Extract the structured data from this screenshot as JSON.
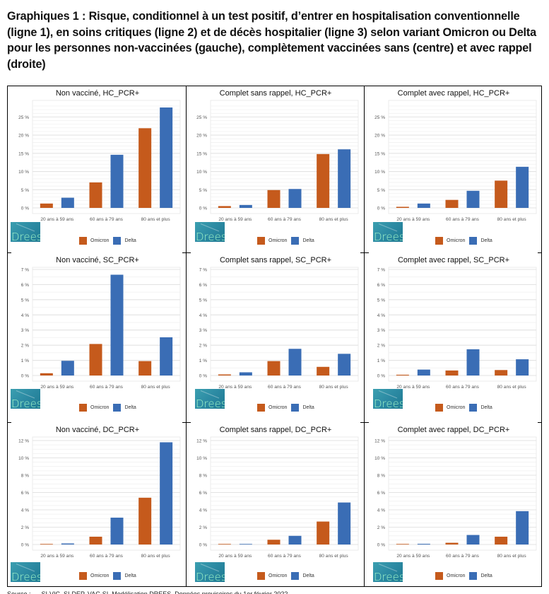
{
  "heading": "Graphiques 1 : Risque, conditionnel à un test positif, d’entrer en hospitalisation conventionnelle (ligne 1), en soins critiques (ligne 2) et de décès hospitalier (ligne 3) selon variant Omicron ou Delta pour les personnes non-vaccinées (gauche), complètement vaccinées sans (centre) et avec rappel (droite)",
  "logo_text": "Drees",
  "legend": {
    "omicron": "Omicron",
    "delta": "Delta"
  },
  "colors": {
    "omicron": "#c55a1c",
    "delta": "#3a6db5",
    "grid": "#e3e3e3",
    "axis_text": "#555555"
  },
  "footer": "Source : ..., SI-VIC, SI-DEP, VAC-SI, Modélisation DREES. Données provisoires du 1er février 2022 ...",
  "chart_data": [
    {
      "type": "bar",
      "title": "Non vacciné, HC_PCR+",
      "categories": [
        "20 ans à 59 ans",
        "60 ans à 79 ans",
        "80 ans et plus"
      ],
      "series": [
        {
          "name": "Omicron",
          "values": [
            1.2,
            7.0,
            21.9
          ]
        },
        {
          "name": "Delta",
          "values": [
            2.8,
            14.6,
            27.6
          ]
        }
      ],
      "yticks": [
        "0 %",
        "5 %",
        "10 %",
        "15 %",
        "20 %",
        "25 %"
      ],
      "ylim": [
        0,
        28
      ],
      "ytick_step": 5,
      "xlabel": "",
      "ylabel": "",
      "grid": true,
      "legend": "bottom"
    },
    {
      "type": "bar",
      "title": "Complet sans rappel, HC_PCR+",
      "categories": [
        "20 ans à 59 ans",
        "60 ans à 79 ans",
        "80 ans et plus"
      ],
      "series": [
        {
          "name": "Omicron",
          "values": [
            0.5,
            4.9,
            14.8
          ]
        },
        {
          "name": "Delta",
          "values": [
            0.8,
            5.2,
            16.1
          ]
        }
      ],
      "yticks": [
        "0 %",
        "5 %",
        "10 %",
        "15 %",
        "20 %",
        "25 %"
      ],
      "ylim": [
        0,
        28
      ],
      "ytick_step": 5,
      "xlabel": "",
      "ylabel": "",
      "grid": true,
      "legend": "bottom"
    },
    {
      "type": "bar",
      "title": "Complet avec rappel, HC_PCR+",
      "categories": [
        "20 ans à 59 ans",
        "60 ans à 79 ans",
        "80 ans et plus"
      ],
      "series": [
        {
          "name": "Omicron",
          "values": [
            0.3,
            2.2,
            7.5
          ]
        },
        {
          "name": "Delta",
          "values": [
            1.2,
            4.7,
            11.3
          ]
        }
      ],
      "yticks": [
        "0 %",
        "5 %",
        "10 %",
        "15 %",
        "20 %",
        "25 %"
      ],
      "ylim": [
        0,
        28
      ],
      "ytick_step": 5,
      "xlabel": "",
      "ylabel": "",
      "grid": true,
      "legend": "bottom"
    },
    {
      "type": "bar",
      "title": "Non vacciné, SC_PCR+",
      "categories": [
        "20 ans à 59 ans",
        "60 ans à 79 ans",
        "80 ans et plus"
      ],
      "series": [
        {
          "name": "Omicron",
          "values": [
            0.15,
            2.08,
            0.95
          ]
        },
        {
          "name": "Delta",
          "values": [
            0.97,
            6.65,
            2.52
          ]
        }
      ],
      "yticks": [
        "0 %",
        "1 %",
        "2 %",
        "3 %",
        "4 %",
        "5 %",
        "6 %",
        "7 %"
      ],
      "ylim": [
        0,
        7
      ],
      "ytick_step": 1,
      "xlabel": "",
      "ylabel": "",
      "grid": true,
      "legend": "bottom"
    },
    {
      "type": "bar",
      "title": "Complet sans rappel, SC_PCR+",
      "categories": [
        "20 ans à 59 ans",
        "60 ans à 79 ans",
        "80 ans et plus"
      ],
      "series": [
        {
          "name": "Omicron",
          "values": [
            0.07,
            0.95,
            0.57
          ]
        },
        {
          "name": "Delta",
          "values": [
            0.21,
            1.76,
            1.43
          ]
        }
      ],
      "yticks": [
        "0 %",
        "1 %",
        "2 %",
        "3 %",
        "4 %",
        "5 %",
        "6 %",
        "7 %"
      ],
      "ylim": [
        0,
        7
      ],
      "ytick_step": 1,
      "xlabel": "",
      "ylabel": "",
      "grid": true,
      "legend": "bottom"
    },
    {
      "type": "bar",
      "title": "Complet avec rappel, SC_PCR+",
      "categories": [
        "20 ans à 59 ans",
        "60 ans à 79 ans",
        "80 ans et plus"
      ],
      "series": [
        {
          "name": "Omicron",
          "values": [
            0.05,
            0.33,
            0.36
          ]
        },
        {
          "name": "Delta",
          "values": [
            0.39,
            1.73,
            1.07
          ]
        }
      ],
      "yticks": [
        "0 %",
        "1 %",
        "2 %",
        "3 %",
        "4 %",
        "5 %",
        "6 %",
        "7 %"
      ],
      "ylim": [
        0,
        7
      ],
      "ytick_step": 1,
      "xlabel": "",
      "ylabel": "",
      "grid": true,
      "legend": "bottom"
    },
    {
      "type": "bar",
      "title": "Non vacciné, DC_PCR+",
      "categories": [
        "20 ans à 59 ans",
        "60 ans à 79 ans",
        "80 ans et plus"
      ],
      "series": [
        {
          "name": "Omicron",
          "values": [
            0.02,
            0.9,
            5.4
          ]
        },
        {
          "name": "Delta",
          "values": [
            0.12,
            3.1,
            11.8
          ]
        }
      ],
      "yticks": [
        "0 %",
        "2 %",
        "4 %",
        "6 %",
        "8 %",
        "10 %",
        "12 %"
      ],
      "ylim": [
        0,
        12.2
      ],
      "ytick_step": 2,
      "xlabel": "",
      "ylabel": "",
      "grid": true,
      "legend": "bottom"
    },
    {
      "type": "bar",
      "title": "Complet sans rappel, DC_PCR+",
      "categories": [
        "20 ans à 59 ans",
        "60 ans à 79 ans",
        "80 ans et plus"
      ],
      "series": [
        {
          "name": "Omicron",
          "values": [
            0.01,
            0.55,
            2.65
          ]
        },
        {
          "name": "Delta",
          "values": [
            0.04,
            1.0,
            4.85
          ]
        }
      ],
      "yticks": [
        "0 %",
        "2 %",
        "4 %",
        "6 %",
        "8 %",
        "10 %",
        "12 %"
      ],
      "ylim": [
        0,
        12.2
      ],
      "ytick_step": 2,
      "xlabel": "",
      "ylabel": "",
      "grid": true,
      "legend": "bottom"
    },
    {
      "type": "bar",
      "title": "Complet avec rappel, DC_PCR+",
      "categories": [
        "20 ans à 59 ans",
        "60 ans à 79 ans",
        "80 ans et plus"
      ],
      "series": [
        {
          "name": "Omicron",
          "values": [
            0.01,
            0.2,
            0.9
          ]
        },
        {
          "name": "Delta",
          "values": [
            0.08,
            1.1,
            3.85
          ]
        }
      ],
      "yticks": [
        "0 %",
        "2 %",
        "4 %",
        "6 %",
        "8 %",
        "10 %",
        "12 %"
      ],
      "ylim": [
        0,
        12.2
      ],
      "ytick_step": 2,
      "xlabel": "",
      "ylabel": "",
      "grid": true,
      "legend": "bottom"
    }
  ]
}
